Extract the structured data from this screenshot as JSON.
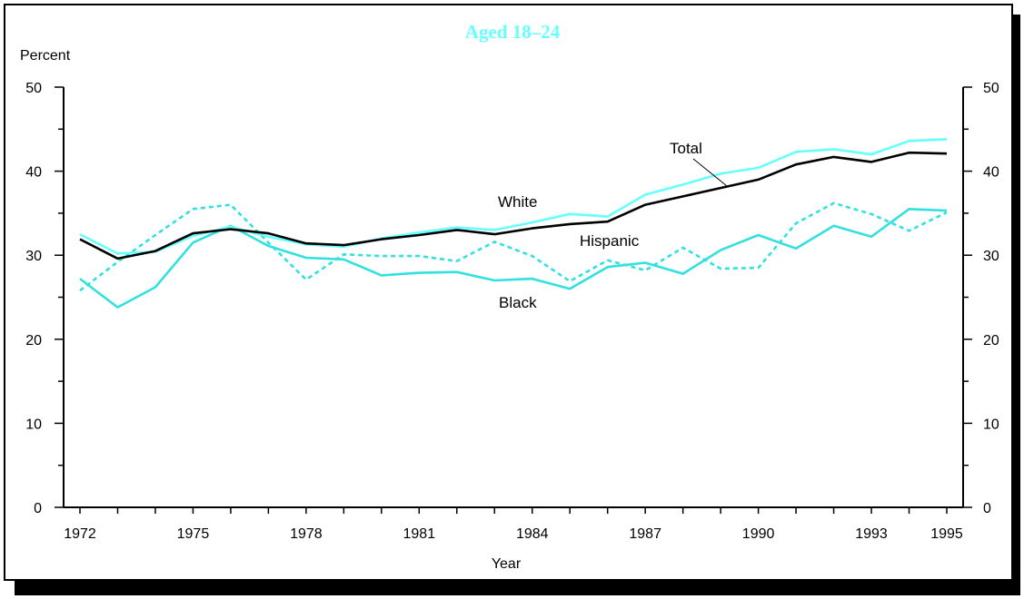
{
  "chart_data": {
    "type": "line",
    "title": "Aged 18–24",
    "xlabel": "Year",
    "ylabel": "Percent",
    "ylim": [
      0,
      50
    ],
    "yticks": [
      0,
      10,
      20,
      30,
      40,
      50
    ],
    "xticks": [
      1972,
      1975,
      1978,
      1981,
      1984,
      1987,
      1990,
      1993,
      1995
    ],
    "x": [
      1972,
      1973,
      1974,
      1975,
      1976,
      1977,
      1978,
      1979,
      1980,
      1981,
      1982,
      1983,
      1984,
      1985,
      1986,
      1987,
      1988,
      1989,
      1990,
      1991,
      1992,
      1993,
      1994,
      1995
    ],
    "grid": false,
    "series": [
      {
        "name": "Total",
        "color": "#000000",
        "style": "solid",
        "values": [
          31.9,
          29.6,
          30.5,
          32.6,
          33.1,
          32.6,
          31.4,
          31.2,
          31.9,
          32.4,
          33.0,
          32.5,
          33.2,
          33.7,
          34.0,
          36.0,
          37.0,
          38.0,
          39.0,
          40.8,
          41.7,
          41.1,
          42.2,
          42.1
        ]
      },
      {
        "name": "White",
        "color": "#66ffff",
        "style": "solid",
        "values": [
          32.5,
          30.2,
          30.4,
          32.3,
          33.4,
          32.2,
          31.3,
          31.0,
          32.0,
          32.7,
          33.3,
          33.0,
          33.9,
          34.9,
          34.6,
          37.2,
          38.4,
          39.7,
          40.4,
          42.3,
          42.6,
          42.0,
          43.6,
          43.8
        ]
      },
      {
        "name": "Black",
        "color": "#33e0e0",
        "style": "solid",
        "values": [
          27.2,
          23.8,
          26.2,
          31.5,
          33.5,
          31.1,
          29.7,
          29.5,
          27.6,
          27.9,
          28.0,
          27.0,
          27.2,
          26.0,
          28.6,
          29.1,
          27.8,
          30.6,
          32.4,
          30.8,
          33.5,
          32.2,
          35.5,
          35.3
        ]
      },
      {
        "name": "Hispanic",
        "color": "#33e0e0",
        "style": "dashed",
        "values": [
          25.8,
          29.2,
          32.4,
          35.5,
          36.0,
          31.5,
          27.1,
          30.1,
          29.9,
          29.9,
          29.3,
          31.6,
          29.9,
          26.9,
          29.4,
          28.2,
          30.9,
          28.4,
          28.5,
          33.8,
          36.2,
          34.9,
          32.9,
          35.1
        ]
      }
    ],
    "annotations": [
      {
        "text": "Total",
        "target": "Total"
      },
      {
        "text": "White",
        "target": "White"
      },
      {
        "text": "Hispanic",
        "target": "Hispanic"
      },
      {
        "text": "Black",
        "target": "Black"
      }
    ]
  },
  "colors": {
    "title": "#66ffff",
    "frame": "#000000",
    "shadow": "#000000"
  }
}
